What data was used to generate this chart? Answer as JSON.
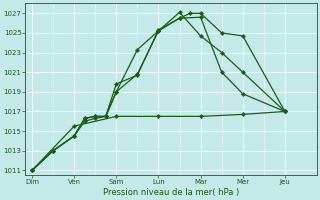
{
  "xlabel": "Pression niveau de la mer( hPa )",
  "bg_color": "#c5e8e8",
  "line_color": "#1a5c1a",
  "ylim": [
    1010.5,
    1028
  ],
  "yticks": [
    1011,
    1013,
    1015,
    1017,
    1019,
    1021,
    1023,
    1025,
    1027
  ],
  "xlabels": [
    "Dim",
    "Ven",
    "Sam",
    "Lun",
    "Mar",
    "Mer",
    "Jeu"
  ],
  "xtick_positions": [
    0,
    24,
    48,
    72,
    96,
    120,
    144
  ],
  "xlim": [
    -4,
    162
  ],
  "line1_x": [
    0,
    12,
    24,
    30,
    36,
    42,
    48,
    60,
    72,
    84,
    90,
    96,
    108,
    120,
    144
  ],
  "line1_y": [
    1011,
    1013,
    1014.5,
    1016.3,
    1016.5,
    1016.5,
    1019.0,
    1020.8,
    1025.2,
    1026.5,
    1027.0,
    1027.0,
    1025.0,
    1024.7,
    1017.0
  ],
  "line2_x": [
    0,
    12,
    24,
    30,
    36,
    42,
    48,
    60,
    72,
    84,
    96,
    108,
    120,
    144
  ],
  "line2_y": [
    1011,
    1013,
    1014.5,
    1016.3,
    1016.5,
    1016.5,
    1019.8,
    1020.7,
    1025.3,
    1026.5,
    1026.6,
    1021.0,
    1018.8,
    1017.0
  ],
  "line3_x": [
    0,
    12,
    24,
    30,
    36,
    42,
    48,
    60,
    72,
    84,
    96,
    108,
    120,
    144
  ],
  "line3_y": [
    1011,
    1013,
    1014.5,
    1016.0,
    1016.3,
    1016.5,
    1019.0,
    1023.3,
    1025.2,
    1027.1,
    1024.7,
    1023.0,
    1021.0,
    1017.0
  ],
  "line4_x": [
    0,
    24,
    48,
    72,
    96,
    120,
    144
  ],
  "line4_y": [
    1011,
    1015.5,
    1016.5,
    1016.5,
    1016.5,
    1016.7,
    1017.0
  ]
}
